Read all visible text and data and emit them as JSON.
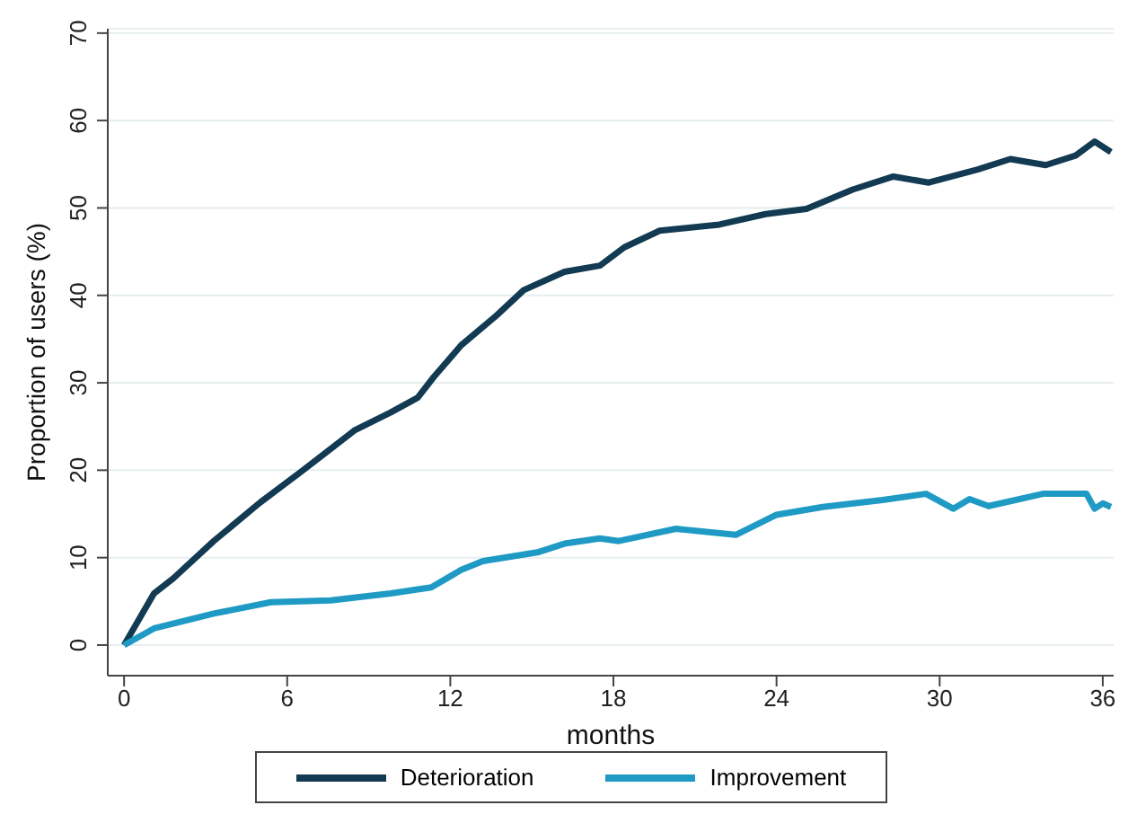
{
  "chart_data": {
    "type": "line",
    "xlabel": "months",
    "ylabel": "Proportion of users (%)",
    "xlim": [
      -0.6,
      36.4
    ],
    "xticks": [
      0,
      6,
      12,
      18,
      24,
      30,
      36
    ],
    "ylim": [
      -3.5,
      70.5
    ],
    "yticks": [
      0,
      10,
      20,
      30,
      40,
      50,
      60,
      70
    ],
    "grid": "y",
    "legend": "bottom",
    "marker": "none",
    "line_style": "solid",
    "series": [
      {
        "name": "Deterioration",
        "color": "#123a52",
        "x": [
          0,
          1.1,
          1.8,
          3.3,
          5.0,
          6.5,
          8.5,
          9.8,
          10.8,
          11.4,
          12.4,
          13.7,
          14.7,
          16.2,
          17.5,
          18.4,
          19.7,
          21.9,
          23.6,
          25.1,
          26.8,
          28.3,
          29.6,
          31.4,
          32.6,
          33.9,
          35.0,
          35.7,
          36.3
        ],
        "values": [
          0,
          5.9,
          7.6,
          11.9,
          16.3,
          19.8,
          24.6,
          26.6,
          28.3,
          30.7,
          34.3,
          37.7,
          40.6,
          42.7,
          43.4,
          45.5,
          47.4,
          48.1,
          49.3,
          49.9,
          52.1,
          53.6,
          52.9,
          54.4,
          55.6,
          54.9,
          56.0,
          57.6,
          56.4
        ]
      },
      {
        "name": "Improvement",
        "color": "#1e9ac4",
        "x": [
          0,
          1.1,
          3.3,
          5.4,
          7.6,
          9.8,
          11.3,
          12.4,
          13.2,
          15.2,
          16.2,
          17.5,
          18.2,
          20.3,
          22.5,
          24.0,
          25.7,
          27.9,
          29.5,
          30.5,
          31.1,
          31.8,
          33.8,
          35.4,
          35.7,
          36.0,
          36.3
        ],
        "values": [
          0,
          1.9,
          3.6,
          4.9,
          5.1,
          5.9,
          6.6,
          8.6,
          9.6,
          10.6,
          11.6,
          12.2,
          11.9,
          13.3,
          12.6,
          14.9,
          15.8,
          16.6,
          17.3,
          15.6,
          16.7,
          15.9,
          17.3,
          17.3,
          15.6,
          16.2,
          15.8
        ]
      }
    ]
  }
}
